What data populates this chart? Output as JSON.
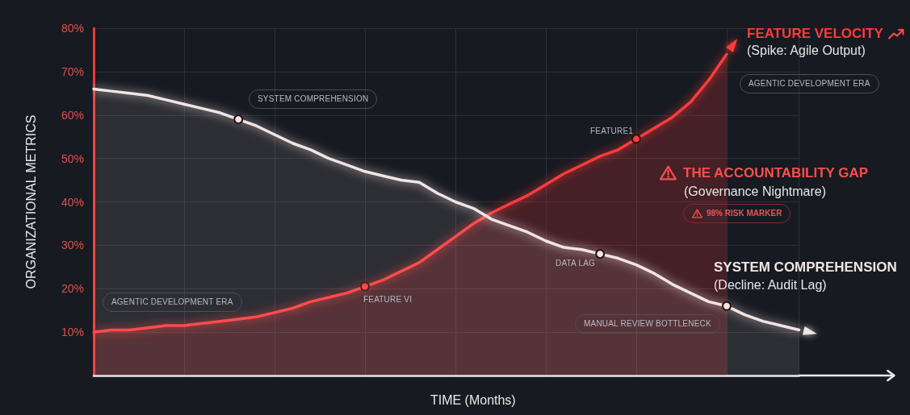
{
  "chart_data": {
    "type": "area",
    "categories": [
      null,
      null,
      null,
      null,
      null,
      null,
      null,
      null,
      null,
      null,
      null,
      null,
      null,
      null,
      null,
      null,
      null,
      null,
      null,
      null,
      null,
      null,
      null,
      null,
      null,
      null,
      null,
      null,
      null,
      null,
      null,
      null,
      null,
      null,
      null,
      null,
      null,
      null,
      null,
      null
    ],
    "series": [
      {
        "name": "FEATURE VELOCITY",
        "color": "#ff3b3b",
        "values": [
          10,
          10.5,
          10.5,
          11,
          11.5,
          11.5,
          12,
          12.5,
          13,
          13.5,
          14.5,
          15.5,
          17,
          18,
          19,
          20.5,
          22,
          24,
          26,
          29,
          32,
          35,
          37.5,
          39.5,
          41.5,
          44,
          46.5,
          48.5,
          50.5,
          52,
          54.5,
          57,
          59.5,
          63,
          68,
          74,
          null,
          null,
          null,
          null
        ]
      },
      {
        "name": "SYSTEM COMPREHENSION",
        "color": "#f2e4e4",
        "values": [
          66,
          65.5,
          65,
          64.5,
          63.5,
          62.5,
          61.5,
          60.5,
          59,
          57.5,
          55.5,
          53.5,
          52,
          50,
          48.5,
          47,
          46,
          45,
          44.5,
          42,
          40,
          38.5,
          36,
          34.5,
          33,
          31,
          29.5,
          29,
          28,
          27,
          25.5,
          23.5,
          21,
          19,
          17,
          16,
          14,
          12.5,
          11.5,
          10.5
        ]
      }
    ],
    "xlabel": "TIME (Months)",
    "ylabel": "ORGANIZATIONAL METRICS",
    "ylim": [
      0,
      80
    ],
    "yticks": [
      {
        "value": 10,
        "label": "10%"
      },
      {
        "value": 20,
        "label": "20%"
      },
      {
        "value": 30,
        "label": "30%"
      },
      {
        "value": 40,
        "label": "40%"
      },
      {
        "value": 50,
        "label": "50%"
      },
      {
        "value": 60,
        "label": "60%"
      },
      {
        "value": 70,
        "label": "70%"
      },
      {
        "value": 80,
        "label": "80%"
      }
    ],
    "grid": true,
    "tick_labels": "y",
    "annotations": [
      "(Spike: Agile Output)",
      "AGENTIC DEVELOPMENT ERA",
      "SYSTEM COMPREHENSION",
      "FEATURE1",
      "THE ACCOUNTABILITY GAP",
      "(Governance Nightmare)",
      "98% RISK MARKER",
      "DATA LAG",
      "(Decline: Audit Lag)",
      "FEATURE VI",
      "AGENTIC DEVELOPMENT ERA",
      "MANUAL REVIEW BOTTLENECK"
    ]
  }
}
